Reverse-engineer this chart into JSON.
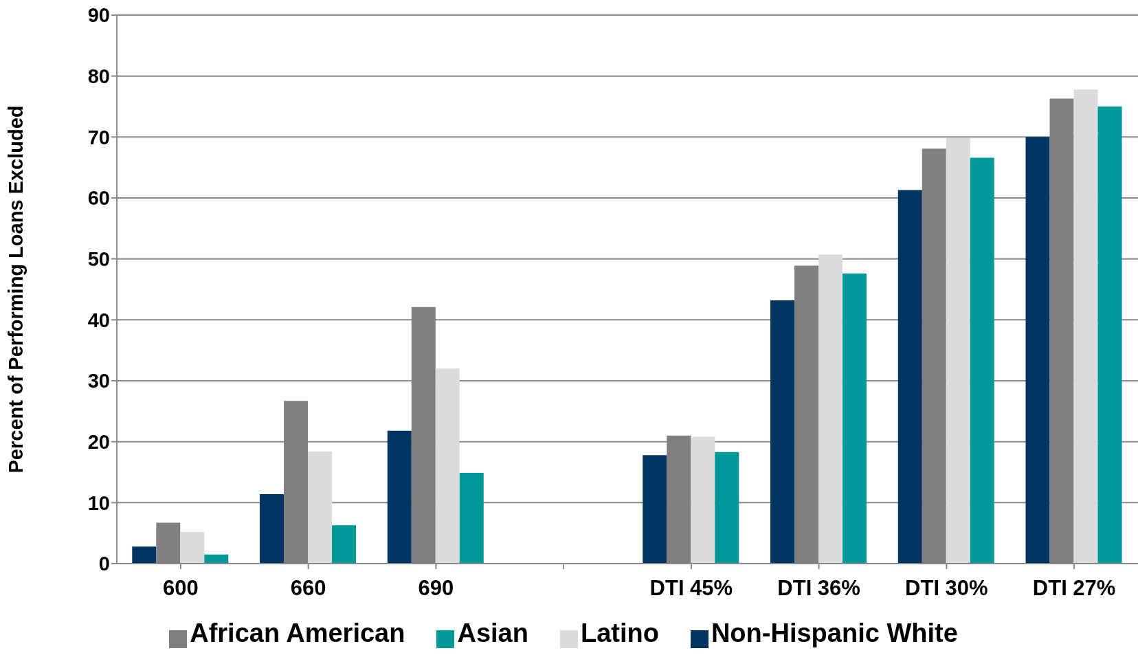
{
  "chart_data": {
    "type": "bar",
    "ylabel": "Percent of Performing Loans Excluded",
    "categories": [
      "600",
      "660",
      "690",
      null,
      "DTI 45%",
      "DTI 36%",
      "DTI 30%",
      "DTI 27%"
    ],
    "series": [
      {
        "name": "Non-Hispanic White",
        "color": "#003462",
        "values": [
          2.8,
          11.4,
          21.8,
          null,
          17.8,
          43.2,
          61.3,
          70.0
        ]
      },
      {
        "name": "African American",
        "color": "#808080",
        "values": [
          6.7,
          26.7,
          42.1,
          null,
          21.0,
          48.9,
          68.1,
          76.3
        ]
      },
      {
        "name": "Latino",
        "color": "#dcdcde",
        "values": [
          5.2,
          18.4,
          32.0,
          null,
          20.8,
          50.7,
          69.9,
          77.8
        ]
      },
      {
        "name": "Asian",
        "color": "#009999",
        "values": [
          1.5,
          6.3,
          14.9,
          null,
          18.3,
          47.6,
          66.6,
          75.0
        ]
      }
    ],
    "ylim": [
      0,
      90
    ],
    "yticks": [
      0,
      10,
      20,
      30,
      40,
      50,
      60,
      70,
      80,
      90
    ],
    "grid": "y",
    "legend": "bottom"
  }
}
